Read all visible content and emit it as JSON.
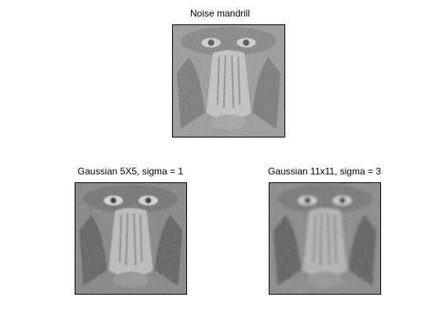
{
  "figure": {
    "panels": [
      {
        "title": "Noise mandrill"
      },
      {
        "title": "Gaussian 5X5, sigma = 1"
      },
      {
        "title": "Gaussian 11x11, sigma = 3"
      }
    ]
  }
}
